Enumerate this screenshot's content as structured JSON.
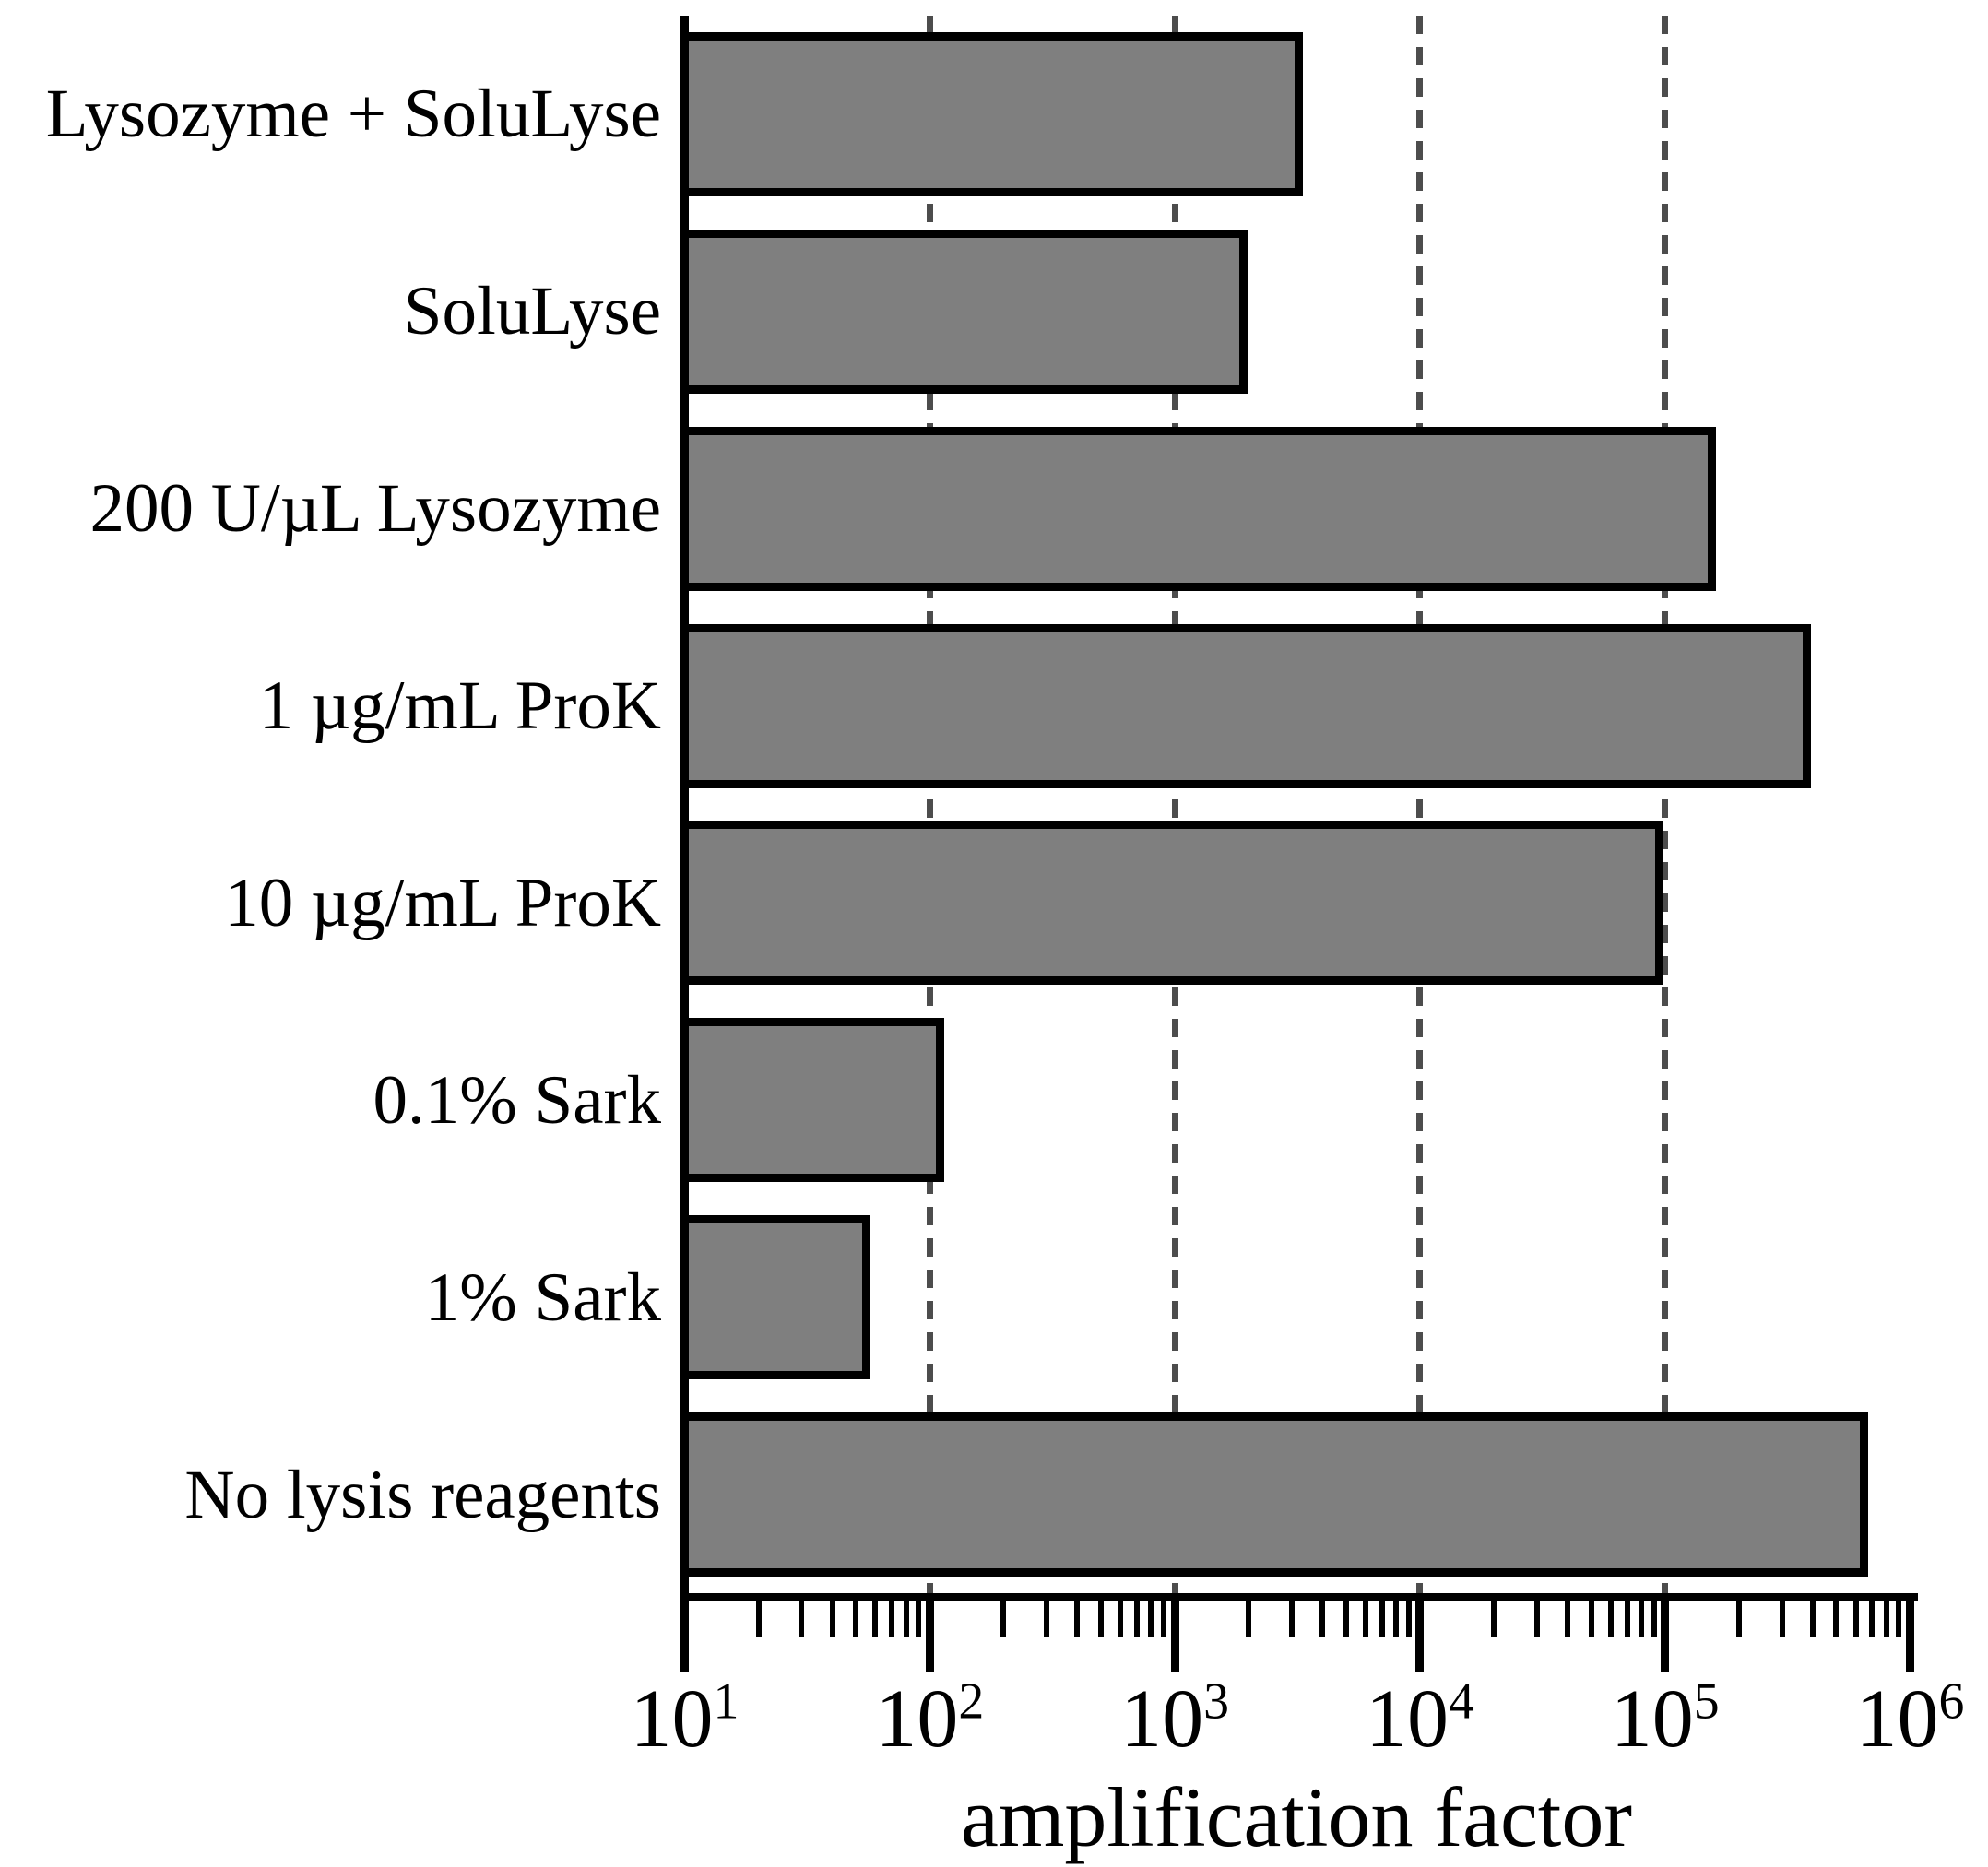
{
  "figure": {
    "xlabel": "amplification factor",
    "tick_base": "10",
    "tick_exponents": [
      1,
      2,
      3,
      4,
      5,
      6
    ]
  },
  "chart_data": {
    "type": "bar",
    "orientation": "horizontal",
    "x_scale": "log",
    "xlim": [
      10,
      1000000
    ],
    "title": "",
    "xlabel": "amplification factor",
    "ylabel": "",
    "grid": "vertical dashed gridlines at 10^2, 10^3, 10^4, 10^5",
    "legend": "none",
    "bar_color": "#7f7f7f",
    "bar_edge_color": "#000000",
    "gridline_color": "#4d4d4d",
    "categories": [
      "Lysozyme + SoluLyse",
      "SoluLyse",
      "200 U/µL Lysozyme",
      "1 µg/mL ProK",
      "10 µg/mL ProK",
      "0.1% Sark",
      "1% Sark",
      "No lysis reagents"
    ],
    "values": [
      3200,
      1900,
      155000,
      380000,
      95000,
      110,
      55,
      650000
    ]
  }
}
